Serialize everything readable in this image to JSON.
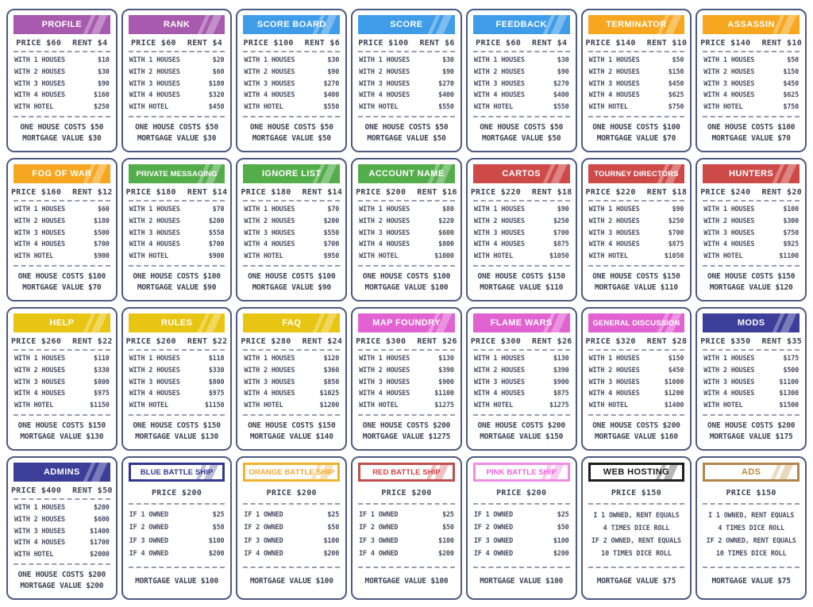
{
  "labels": {
    "house_rows": [
      "WITH 1 HOUSES",
      "WITH 2 HOUSES",
      "WITH 3 HOUSES",
      "WITH 4 HOUSES",
      "WITH HOTEL"
    ],
    "ship_rows": [
      "IF 1 OWNED",
      "IF 2 OWNED",
      "IF 3 OWNED",
      "IF 4 OWNED"
    ]
  },
  "colors": {
    "purple": "#a75aae",
    "blue": "#3f9ce8",
    "orange": "#f6a71f",
    "green": "#54ad4b",
    "red": "#ce4a49",
    "yellow": "#e9c513",
    "pink": "#e162d0",
    "navy": "#3c3e99",
    "card_border": "#4d5a80"
  },
  "cards": [
    {
      "title": "PROFILE",
      "variant": "solid",
      "type": "property",
      "accent": "#a75aae",
      "price_text": "PRICE $60",
      "rent_text": "RENT $4",
      "rows": [
        {
          "label": "WITH 1 HOUSES",
          "value": "$10"
        },
        {
          "label": "WITH 2 HOUSES",
          "value": "$30"
        },
        {
          "label": "WITH 3 HOUSES",
          "value": "$90"
        },
        {
          "label": "WITH 4 HOUSES",
          "value": "$160"
        },
        {
          "label": "WITH HOTEL",
          "value": "$250"
        }
      ],
      "footer": [
        "ONE HOUSE COSTS $50",
        "MORTGAGE VALUE $30"
      ]
    },
    {
      "title": "RANK",
      "variant": "solid",
      "type": "property",
      "accent": "#a75aae",
      "price_text": "PRICE $60",
      "rent_text": "RENT $4",
      "rows": [
        {
          "label": "WITH 1 HOUSES",
          "value": "$20"
        },
        {
          "label": "WITH 2 HOUSES",
          "value": "$60"
        },
        {
          "label": "WITH 3 HOUSES",
          "value": "$180"
        },
        {
          "label": "WITH 4 HOUSES",
          "value": "$320"
        },
        {
          "label": "WITH HOTEL",
          "value": "$450"
        }
      ],
      "footer": [
        "ONE HOUSE COSTS $50",
        "MORTGAGE VALUE $30"
      ]
    },
    {
      "title": "SCORE BOARD",
      "variant": "solid",
      "type": "property",
      "accent": "#3f9ce8",
      "price_text": "PRICE $100",
      "rent_text": "RENT $6",
      "rows": [
        {
          "label": "WITH 1 HOUSES",
          "value": "$30"
        },
        {
          "label": "WITH 2 HOUSES",
          "value": "$90"
        },
        {
          "label": "WITH 3 HOUSES",
          "value": "$270"
        },
        {
          "label": "WITH 4 HOUSES",
          "value": "$400"
        },
        {
          "label": "WITH HOTEL",
          "value": "$550"
        }
      ],
      "footer": [
        "ONE HOUSE COSTS $50",
        "MORTGAGE VALUE $50"
      ]
    },
    {
      "title": "SCORE",
      "variant": "solid",
      "type": "property",
      "accent": "#3f9ce8",
      "price_text": "PRICE $100",
      "rent_text": "RENT $6",
      "rows": [
        {
          "label": "WITH 1 HOUSES",
          "value": "$30"
        },
        {
          "label": "WITH 2 HOUSES",
          "value": "$90"
        },
        {
          "label": "WITH 3 HOUSES",
          "value": "$270"
        },
        {
          "label": "WITH 4 HOUSES",
          "value": "$400"
        },
        {
          "label": "WITH HOTEL",
          "value": "$550"
        }
      ],
      "footer": [
        "ONE HOUSE COSTS $50",
        "MORTGAGE VALUE $50"
      ]
    },
    {
      "title": "FEEDBACK",
      "variant": "solid",
      "type": "property",
      "accent": "#3f9ce8",
      "price_text": "PRICE $60",
      "rent_text": "RENT $4",
      "rows": [
        {
          "label": "WITH 1 HOUSES",
          "value": "$30"
        },
        {
          "label": "WITH 2 HOUSES",
          "value": "$90"
        },
        {
          "label": "WITH 3 HOUSES",
          "value": "$270"
        },
        {
          "label": "WITH 4 HOUSES",
          "value": "$400"
        },
        {
          "label": "WITH HOTEL",
          "value": "$550"
        }
      ],
      "footer": [
        "ONE HOUSE COSTS $50",
        "MORTGAGE VALUE $50"
      ]
    },
    {
      "title": "TERMINATOR",
      "variant": "solid",
      "type": "property",
      "accent": "#f6a71f",
      "price_text": "PRICE $140",
      "rent_text": "RENT $10",
      "rows": [
        {
          "label": "WITH 1 HOUSES",
          "value": "$50"
        },
        {
          "label": "WITH 2 HOUSES",
          "value": "$150"
        },
        {
          "label": "WITH 3 HOUSES",
          "value": "$450"
        },
        {
          "label": "WITH 4 HOUSES",
          "value": "$625"
        },
        {
          "label": "WITH HOTEL",
          "value": "$750"
        }
      ],
      "footer": [
        "ONE HOUSE COSTS $100",
        "MORTGAGE VALUE $70"
      ]
    },
    {
      "title": "ASSASSIN",
      "variant": "solid",
      "type": "property",
      "accent": "#f6a71f",
      "price_text": "PRICE $140",
      "rent_text": "RENT $10",
      "rows": [
        {
          "label": "WITH 1 HOUSES",
          "value": "$50"
        },
        {
          "label": "WITH 2 HOUSES",
          "value": "$150"
        },
        {
          "label": "WITH 3 HOUSES",
          "value": "$450"
        },
        {
          "label": "WITH 4 HOUSES",
          "value": "$625"
        },
        {
          "label": "WITH HOTEL",
          "value": "$750"
        }
      ],
      "footer": [
        "ONE HOUSE COSTS $100",
        "MORTGAGE VALUE $70"
      ]
    },
    {
      "title": "FOG OF WAR",
      "variant": "solid",
      "type": "property",
      "accent": "#f6a71f",
      "price_text": "PRICE $160",
      "rent_text": "RENT $12",
      "rows": [
        {
          "label": "WITH 1 HOUSES",
          "value": "$60"
        },
        {
          "label": "WITH 2 HOUSES",
          "value": "$180"
        },
        {
          "label": "WITH 3 HOUSES",
          "value": "$500"
        },
        {
          "label": "WITH 4 HOUSES",
          "value": "$700"
        },
        {
          "label": "WITH HOTEL",
          "value": "$900"
        }
      ],
      "footer": [
        "ONE HOUSE COSTS $100",
        "MORTGAGE VALUE $70"
      ]
    },
    {
      "title": "PRIVATE MESSAGING",
      "variant": "solid",
      "type": "property",
      "accent": "#54ad4b",
      "price_text": "PRICE $180",
      "rent_text": "RENT $14",
      "rows": [
        {
          "label": "WITH 1 HOUSES",
          "value": "$70"
        },
        {
          "label": "WITH 2 HOUSES",
          "value": "$200"
        },
        {
          "label": "WITH 3 HOUSES",
          "value": "$550"
        },
        {
          "label": "WITH 4 HOUSES",
          "value": "$700"
        },
        {
          "label": "WITH HOTEL",
          "value": "$900"
        }
      ],
      "footer": [
        "ONE HOUSE COSTS $100",
        "MORTGAGE VALUE $90"
      ]
    },
    {
      "title": "IGNORE LIST",
      "variant": "solid",
      "type": "property",
      "accent": "#54ad4b",
      "price_text": "PRICE $180",
      "rent_text": "RENT $14",
      "rows": [
        {
          "label": "WITH 1 HOUSES",
          "value": "$70"
        },
        {
          "label": "WITH 2 HOUSES",
          "value": "$200"
        },
        {
          "label": "WITH 3 HOUSES",
          "value": "$550"
        },
        {
          "label": "WITH 4 HOUSES",
          "value": "$700"
        },
        {
          "label": "WITH HOTEL",
          "value": "$950"
        }
      ],
      "footer": [
        "ONE HOUSE COSTS $100",
        "MORTGAGE VALUE $90"
      ]
    },
    {
      "title": "ACCOUNT NAME",
      "variant": "solid",
      "type": "property",
      "accent": "#54ad4b",
      "price_text": "PRICE $200",
      "rent_text": "RENT $16",
      "rows": [
        {
          "label": "WITH 1 HOUSES",
          "value": "$80"
        },
        {
          "label": "WITH 2 HOUSES",
          "value": "$220"
        },
        {
          "label": "WITH 3 HOUSES",
          "value": "$600"
        },
        {
          "label": "WITH 4 HOUSES",
          "value": "$800"
        },
        {
          "label": "WITH HOTEL",
          "value": "$1000"
        }
      ],
      "footer": [
        "ONE HOUSE COSTS $100",
        "MORTGAGE VALUE $100"
      ]
    },
    {
      "title": "CARTOS",
      "variant": "solid",
      "type": "property",
      "accent": "#ce4a49",
      "price_text": "PRICE $220",
      "rent_text": "RENT $18",
      "rows": [
        {
          "label": "WITH 1 HOUSES",
          "value": "$90"
        },
        {
          "label": "WITH 2 HOUSES",
          "value": "$250"
        },
        {
          "label": "WITH 3 HOUSES",
          "value": "$700"
        },
        {
          "label": "WITH 4 HOUSES",
          "value": "$875"
        },
        {
          "label": "WITH HOTEL",
          "value": "$1050"
        }
      ],
      "footer": [
        "ONE HOUSE COSTS $150",
        "MORTGAGE VALUE $110"
      ]
    },
    {
      "title": "TOURNEY DIRECTORS",
      "variant": "solid",
      "type": "property",
      "accent": "#ce4a49",
      "price_text": "PRICE $220",
      "rent_text": "RENT $18",
      "rows": [
        {
          "label": "WITH 1 HOUSES",
          "value": "$90"
        },
        {
          "label": "WITH 2 HOUSES",
          "value": "$250"
        },
        {
          "label": "WITH 3 HOUSES",
          "value": "$700"
        },
        {
          "label": "WITH 4 HOUSES",
          "value": "$875"
        },
        {
          "label": "WITH HOTEL",
          "value": "$1050"
        }
      ],
      "footer": [
        "ONE HOUSE COSTS $150",
        "MORTGAGE VALUE $110"
      ]
    },
    {
      "title": "HUNTERS",
      "variant": "solid",
      "type": "property",
      "accent": "#ce4a49",
      "price_text": "PRICE $240",
      "rent_text": "RENT $20",
      "rows": [
        {
          "label": "WITH 1 HOUSES",
          "value": "$100"
        },
        {
          "label": "WITH 2 HOUSES",
          "value": "$300"
        },
        {
          "label": "WITH 3 HOUSES",
          "value": "$750"
        },
        {
          "label": "WITH 4 HOUSES",
          "value": "$925"
        },
        {
          "label": "WITH HOTEL",
          "value": "$1100"
        }
      ],
      "footer": [
        "ONE HOUSE COSTS $150",
        "MORTGAGE VALUE $120"
      ]
    },
    {
      "title": "HELP",
      "variant": "solid",
      "type": "property",
      "accent": "#e9c513",
      "price_text": "PRICE $260",
      "rent_text": "RENT $22",
      "rows": [
        {
          "label": "WITH 1 HOUSES",
          "value": "$110"
        },
        {
          "label": "WITH 2 HOUSES",
          "value": "$330"
        },
        {
          "label": "WITH 3 HOUSES",
          "value": "$800"
        },
        {
          "label": "WITH 4 HOUSES",
          "value": "$975"
        },
        {
          "label": "WITH HOTEL",
          "value": "$1150"
        }
      ],
      "footer": [
        "ONE HOUSE COSTS $150",
        "MORTGAGE VALUE $130"
      ]
    },
    {
      "title": "RULES",
      "variant": "solid",
      "type": "property",
      "accent": "#e9c513",
      "price_text": "PRICE $260",
      "rent_text": "RENT $22",
      "rows": [
        {
          "label": "WITH 1 HOUSES",
          "value": "$110"
        },
        {
          "label": "WITH 2 HOUSES",
          "value": "$330"
        },
        {
          "label": "WITH 3 HOUSES",
          "value": "$800"
        },
        {
          "label": "WITH 4 HOUSES",
          "value": "$975"
        },
        {
          "label": "WITH HOTEL",
          "value": "$1150"
        }
      ],
      "footer": [
        "ONE HOUSE COSTS $150",
        "MORTGAGE VALUE $130"
      ]
    },
    {
      "title": "FAQ",
      "variant": "solid",
      "type": "property",
      "accent": "#e9c513",
      "price_text": "PRICE $280",
      "rent_text": "RENT $24",
      "rows": [
        {
          "label": "WITH 1 HOUSES",
          "value": "$120"
        },
        {
          "label": "WITH 2 HOUSES",
          "value": "$360"
        },
        {
          "label": "WITH 3 HOUSES",
          "value": "$850"
        },
        {
          "label": "WITH 4 HOUSES",
          "value": "$1025"
        },
        {
          "label": "WITH HOTEL",
          "value": "$1200"
        }
      ],
      "footer": [
        "ONE HOUSE COSTS $150",
        "MORTGAGE VALUE $140"
      ]
    },
    {
      "title": "MAP FOUNDRY",
      "variant": "solid",
      "type": "property",
      "accent": "#e162d0",
      "price_text": "PRICE $300",
      "rent_text": "RENT $26",
      "rows": [
        {
          "label": "WITH 1 HOUSES",
          "value": "$130"
        },
        {
          "label": "WITH 2 HOUSES",
          "value": "$390"
        },
        {
          "label": "WITH 3 HOUSES",
          "value": "$900"
        },
        {
          "label": "WITH 4 HOUSES",
          "value": "$1100"
        },
        {
          "label": "WITH HOTEL",
          "value": "$1275"
        }
      ],
      "footer": [
        "ONE HOUSE COSTS $200",
        "MORTGAGE VALUE $1275"
      ]
    },
    {
      "title": "FLAME WARS",
      "variant": "solid",
      "type": "property",
      "accent": "#e162d0",
      "price_text": "PRICE $300",
      "rent_text": "RENT $26",
      "rows": [
        {
          "label": "WITH 1 HOUSES",
          "value": "$130"
        },
        {
          "label": "WITH 2 HOUSES",
          "value": "$390"
        },
        {
          "label": "WITH 3 HOUSES",
          "value": "$900"
        },
        {
          "label": "WITH 4 HOUSES",
          "value": "$875"
        },
        {
          "label": "WITH HOTEL",
          "value": "$1275"
        }
      ],
      "footer": [
        "ONE HOUSE COSTS $200",
        "MORTGAGE VALUE $150"
      ]
    },
    {
      "title": "GENERAL DISCUSSION",
      "variant": "solid",
      "type": "property",
      "accent": "#e162d0",
      "price_text": "PRICE $320",
      "rent_text": "RENT $28",
      "rows": [
        {
          "label": "WITH 1 HOUSES",
          "value": "$150"
        },
        {
          "label": "WITH 2 HOUSES",
          "value": "$450"
        },
        {
          "label": "WITH 3 HOUSES",
          "value": "$1000"
        },
        {
          "label": "WITH 4 HOUSES",
          "value": "$1200"
        },
        {
          "label": "WITH HOTEL",
          "value": "$1400"
        }
      ],
      "footer": [
        "ONE HOUSE COSTS $200",
        "MORTGAGE VALUE $160"
      ]
    },
    {
      "title": "MODS",
      "variant": "solid",
      "type": "property",
      "accent": "#3c3e99",
      "price_text": "PRICE $350",
      "rent_text": "RENT $35",
      "rows": [
        {
          "label": "WITH 1 HOUSES",
          "value": "$175"
        },
        {
          "label": "WITH 2 HOUSES",
          "value": "$500"
        },
        {
          "label": "WITH 3 HOUSES",
          "value": "$1100"
        },
        {
          "label": "WITH 4 HOUSES",
          "value": "$1300"
        },
        {
          "label": "WITH HOTEL",
          "value": "$1500"
        }
      ],
      "footer": [
        "ONE HOUSE COSTS $200",
        "MORTGAGE VALUE $175"
      ]
    },
    {
      "title": "ADMINS",
      "variant": "solid",
      "type": "property",
      "accent": "#3c3e99",
      "price_text": "PRICE $400",
      "rent_text": "RENT $50",
      "rows": [
        {
          "label": "WITH 1 HOUSES",
          "value": "$200"
        },
        {
          "label": "WITH 2 HOUSES",
          "value": "$600"
        },
        {
          "label": "WITH 3 HOUSES",
          "value": "$1400"
        },
        {
          "label": "WITH 4 HOUSES",
          "value": "$1700"
        },
        {
          "label": "WITH HOTEL",
          "value": "$2000"
        }
      ],
      "footer": [
        "ONE HOUSE COSTS $200",
        "MORTGAGE VALUE $200"
      ]
    },
    {
      "title": "BLUE BATTLE SHIP",
      "variant": "outline",
      "type": "ship",
      "accent": "#33368e",
      "title_color": "#33368e",
      "price_text": "PRICE $200",
      "rent_text": null,
      "rows": [
        {
          "label": "IF 1 OWNED",
          "value": "$25"
        },
        {
          "label": "IF 2 OWNED",
          "value": "$50"
        },
        {
          "label": "IF 3 OWNED",
          "value": "$100"
        },
        {
          "label": "IF 4 OWNED",
          "value": "$200"
        }
      ],
      "footer": [
        "MORTGAGE VALUE $100"
      ]
    },
    {
      "title": "ORANGE BATTLE SHIP",
      "variant": "outline",
      "type": "ship",
      "accent": "#eeb32f",
      "title_color": "#f0a830",
      "price_text": "PRICE $200",
      "rent_text": null,
      "rows": [
        {
          "label": "IF 1 OWNED",
          "value": "$25"
        },
        {
          "label": "IF 2 OWNED",
          "value": "$50"
        },
        {
          "label": "IF 3 OWNED",
          "value": "$100"
        },
        {
          "label": "IF 4 OWNED",
          "value": "$200"
        }
      ],
      "footer": [
        "MORTGAGE VALUE $100"
      ]
    },
    {
      "title": "RED BATTLE SHIP",
      "variant": "outline",
      "type": "ship",
      "accent": "#bf4e4c",
      "title_color": "#d24444",
      "price_text": "PRICE $200",
      "rent_text": null,
      "rows": [
        {
          "label": "IF 1 OWNED",
          "value": "$25"
        },
        {
          "label": "IF 2 OWNED",
          "value": "$50"
        },
        {
          "label": "IF 3 OWNED",
          "value": "$100"
        },
        {
          "label": "IF 4 OWNED",
          "value": "$200"
        }
      ],
      "footer": [
        "MORTGAGE VALUE $100"
      ]
    },
    {
      "title": "PINK BATTLE SHIP",
      "variant": "outline",
      "type": "ship",
      "accent": "#ef8ce5",
      "title_color": "#ee62da",
      "price_text": "PRICE $200",
      "rent_text": null,
      "rows": [
        {
          "label": "IF 1 OWNED",
          "value": "$25"
        },
        {
          "label": "IF 2 OWNED",
          "value": "$50"
        },
        {
          "label": "IF 3 OWNED",
          "value": "$100"
        },
        {
          "label": "IF 4 OWNED",
          "value": "$200"
        }
      ],
      "footer": [
        "MORTGAGE VALUE $100"
      ]
    },
    {
      "title": "WEB HOSTING",
      "variant": "outline",
      "type": "utility",
      "accent": "#1d1d1d",
      "title_color": "#1d1d1d",
      "price_text": "PRICE $150",
      "rent_text": null,
      "lines": [
        "I 1 OWNED, RENT EQUALS",
        "4 TIMES DICE ROLL",
        "IF 2 OWNED, RENT EQUALS",
        "10 TIMES DICE ROLL"
      ],
      "footer": [
        "MORTGAGE VALUE $75"
      ]
    },
    {
      "title": "ADS",
      "variant": "outline",
      "type": "utility",
      "accent": "#b1854c",
      "title_color": "#bd8a33",
      "price_text": "PRICE $150",
      "rent_text": null,
      "lines": [
        "I 1 OWNED, RENT EQUALS",
        "4 TIMES DICE ROLL",
        "IF 2 OWNED, RENT EQUALS",
        "10 TIMES DICE ROLL"
      ],
      "footer": [
        "MORTGAGE VALUE $75"
      ]
    }
  ]
}
